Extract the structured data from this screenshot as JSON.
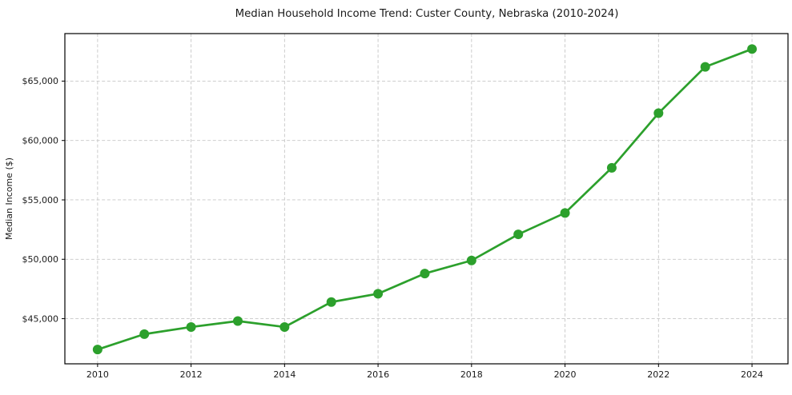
{
  "figure": {
    "title": "Median Household Income Trend: Custer County, Nebraska (2010-2024)"
  },
  "chart_data": {
    "type": "line",
    "title": "Median Household Income Trend: Custer County, Nebraska (2010-2024)",
    "xlabel": "",
    "ylabel": "Median Income ($)",
    "x": [
      2010,
      2011,
      2012,
      2013,
      2014,
      2015,
      2016,
      2017,
      2018,
      2019,
      2020,
      2021,
      2022,
      2023,
      2024
    ],
    "values": [
      42400,
      43700,
      44300,
      44800,
      44300,
      46400,
      47100,
      48800,
      49900,
      52100,
      53900,
      57700,
      62300,
      66200,
      67700
    ],
    "x_ticks": [
      2010,
      2012,
      2014,
      2016,
      2018,
      2020,
      2022,
      2024
    ],
    "x_tick_labels": [
      "2010",
      "2012",
      "2014",
      "2016",
      "2018",
      "2020",
      "2022",
      "2024"
    ],
    "y_ticks": [
      45000,
      50000,
      55000,
      60000,
      65000
    ],
    "y_tick_labels": [
      "$45,000",
      "$50,000",
      "$55,000",
      "$60,000",
      "$65,000"
    ],
    "xlim": [
      2009.3,
      2024.77
    ],
    "ylim": [
      41200,
      69000
    ],
    "grid": true,
    "grid_style": "dashed",
    "legend": "none",
    "marker": "circle",
    "colors": {
      "line": "#2ca02c",
      "grid": "#c6c6c6",
      "spine": "#000000",
      "text": "#1a1a1a",
      "background": "#ffffff"
    }
  }
}
